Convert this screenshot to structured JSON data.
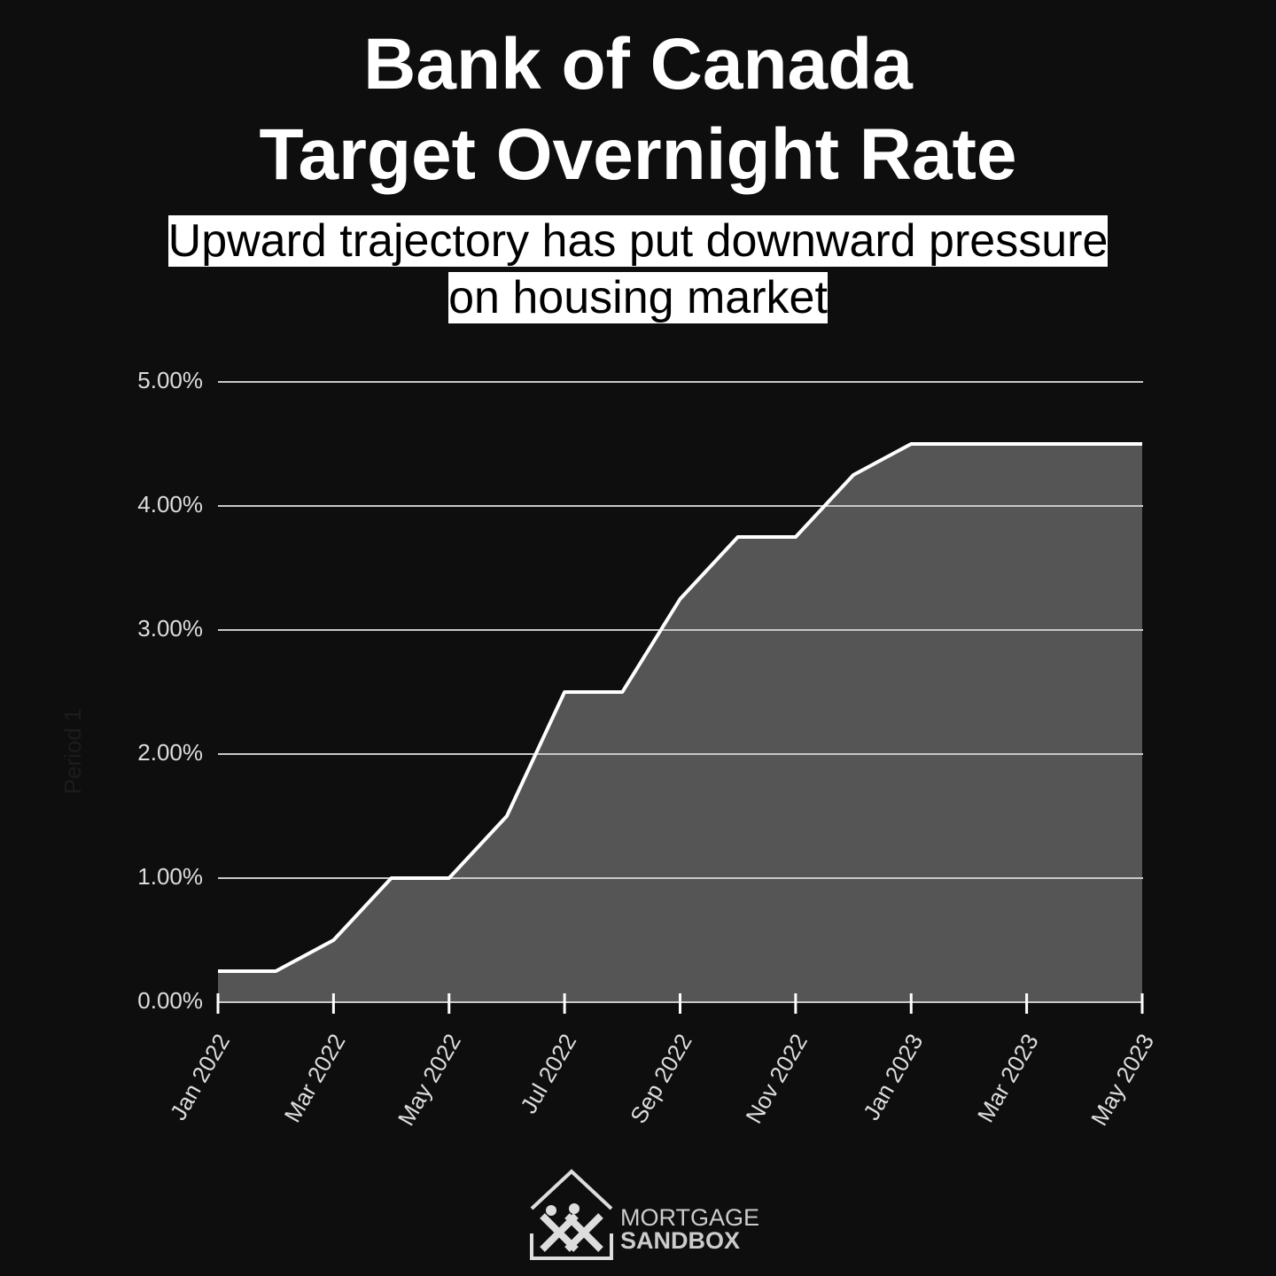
{
  "chart_data": {
    "type": "area",
    "title": "Bank of Canada\nTarget Overnight Rate",
    "subtitle": "Upward trajectory has put downward pressure\non housing market",
    "y_label": "Period 1",
    "x": [
      "2022-01",
      "2022-02",
      "2022-03",
      "2022-04",
      "2022-05",
      "2022-06",
      "2022-07",
      "2022-08",
      "2022-09",
      "2022-10",
      "2022-11",
      "2022-12",
      "2023-01",
      "2023-02",
      "2023-03",
      "2023-04",
      "2023-05"
    ],
    "values": [
      0.25,
      0.25,
      0.5,
      1.0,
      1.0,
      1.5,
      2.5,
      2.5,
      3.25,
      3.75,
      3.75,
      4.25,
      4.5,
      4.5,
      4.5,
      4.5,
      4.5
    ],
    "color": "#555555",
    "line_color": "#ffffff",
    "xlim": [
      "2022-01",
      "2023-05"
    ],
    "xticks": [
      {
        "value": "2022-01",
        "label": "Jan 2022"
      },
      {
        "value": "2022-03",
        "label": "Mar 2022"
      },
      {
        "value": "2022-05",
        "label": "May 2022"
      },
      {
        "value": "2022-07",
        "label": "Jul 2022"
      },
      {
        "value": "2022-09",
        "label": "Sep 2022"
      },
      {
        "value": "2022-11",
        "label": "Nov 2022"
      },
      {
        "value": "2023-01",
        "label": "Jan 2023"
      },
      {
        "value": "2023-03",
        "label": "Mar 2023"
      },
      {
        "value": "2023-05",
        "label": "May 2023"
      }
    ],
    "ylim": [
      0,
      5
    ],
    "yticks": [
      {
        "value": 0,
        "label": "0.00%"
      },
      {
        "value": 1,
        "label": "1.00%"
      },
      {
        "value": 2,
        "label": "2.00%"
      },
      {
        "value": 3,
        "label": "3.00%"
      },
      {
        "value": 4,
        "label": "4.00%"
      },
      {
        "value": 5,
        "label": "5.00%"
      }
    ],
    "grid": true
  },
  "logo": {
    "line1": "MORTGAGE",
    "line2": "SANDBOX"
  }
}
